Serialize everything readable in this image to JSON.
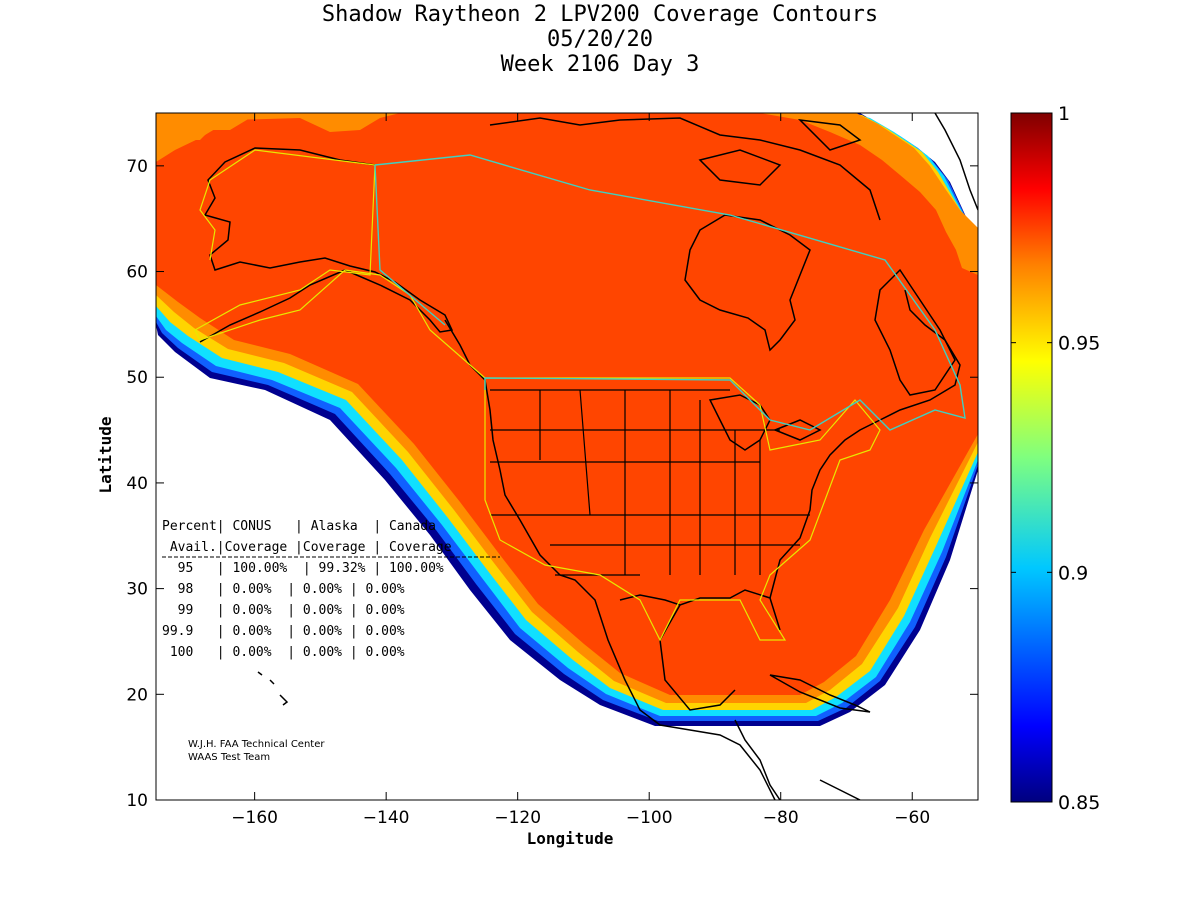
{
  "header": {
    "title": "Shadow Raytheon 2 LPV200 Coverage Contours",
    "date": "05/20/20",
    "week": "Week 2106 Day 3"
  },
  "chart_data": {
    "type": "heatmap",
    "xlabel": "Longitude",
    "ylabel": "Latitude",
    "xlim": [
      -175,
      -50
    ],
    "ylim": [
      10,
      75
    ],
    "xticks": [
      -160,
      -140,
      -120,
      -100,
      -80,
      -60
    ],
    "yticks": [
      10,
      20,
      30,
      40,
      50,
      60,
      70
    ],
    "colorbar": {
      "range": [
        0.85,
        1
      ],
      "ticks": [
        "0.85",
        "0.9",
        "0.95",
        "1"
      ],
      "colormap": "jet"
    },
    "coverage_fill_value": 0.97,
    "colors": {
      "coverage": "#ff4500",
      "outer_orange": "#ff8c00",
      "band_yellow": "#ffd400",
      "band_cyan": "#10e0ff",
      "band_blue": "#1060ff",
      "band_navy": "#00008f",
      "service_boundary": "#e8e800",
      "fir_boundary": "#40d0c0"
    }
  },
  "availability_table": {
    "header_row1": "Percent| CONUS   | Alaska  | Canada",
    "header_row2": " Avail.|Coverage |Coverage | Coverage",
    "rows": [
      "  95   | 100.00%  | 99.32% | 100.00%",
      "  98   | 0.00%  | 0.00% | 0.00%",
      "  99   | 0.00%  | 0.00% | 0.00%",
      "99.9   | 0.00%  | 0.00% | 0.00%",
      " 100   | 0.00%  | 0.00% | 0.00%"
    ]
  },
  "credits": {
    "line1": "W.J.H. FAA Technical Center",
    "line2": "WAAS Test Team"
  }
}
